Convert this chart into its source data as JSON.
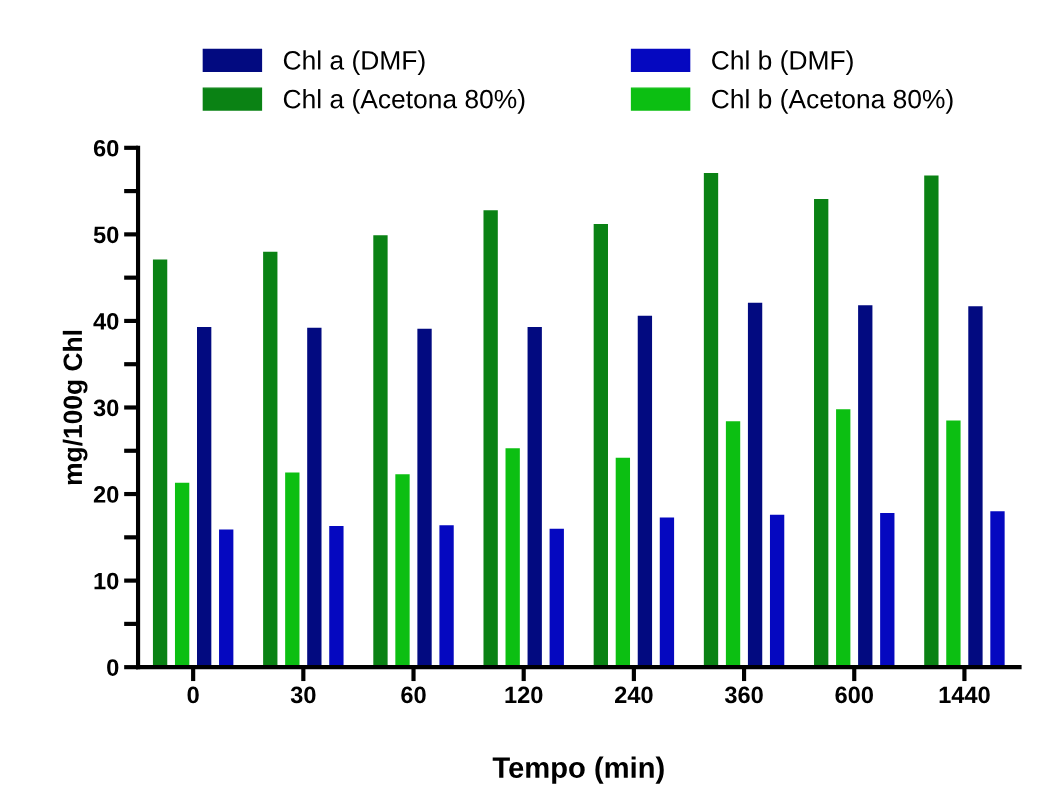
{
  "chart_data": {
    "type": "bar",
    "xlabel": "Tempo (min)",
    "ylabel": "mg/100g Chl",
    "categories": [
      "0",
      "30",
      "60",
      "120",
      "240",
      "360",
      "600",
      "1440"
    ],
    "series": [
      {
        "name": "Chl a (Acetona 80%)",
        "color": "#0a8214",
        "values": [
          47.1,
          48.0,
          49.9,
          52.8,
          51.2,
          57.1,
          54.1,
          56.8
        ]
      },
      {
        "name": "Chl b (Acetona 80%)",
        "color": "#0cbf12",
        "values": [
          21.3,
          22.5,
          22.3,
          25.3,
          24.2,
          28.4,
          29.8,
          28.5
        ]
      },
      {
        "name": "Chl a (DMF)",
        "color": "#020a80",
        "values": [
          39.3,
          39.2,
          39.1,
          39.3,
          40.6,
          42.1,
          41.8,
          41.7
        ]
      },
      {
        "name": "Chl b (DMF)",
        "color": "#0508c0",
        "values": [
          15.9,
          16.3,
          16.4,
          16.0,
          17.3,
          17.6,
          17.8,
          18.0
        ]
      }
    ],
    "ylim": [
      0,
      60
    ],
    "yticks": [
      0,
      {
        "value": 5,
        "label": null
      },
      10,
      {
        "value": 15,
        "label": null
      },
      20,
      {
        "value": 25,
        "label": null
      },
      30,
      {
        "value": 35,
        "label": null
      },
      40,
      {
        "value": 45,
        "label": null
      },
      50,
      {
        "value": 55,
        "label": null
      },
      60
    ],
    "grid": false,
    "legend": "top"
  }
}
